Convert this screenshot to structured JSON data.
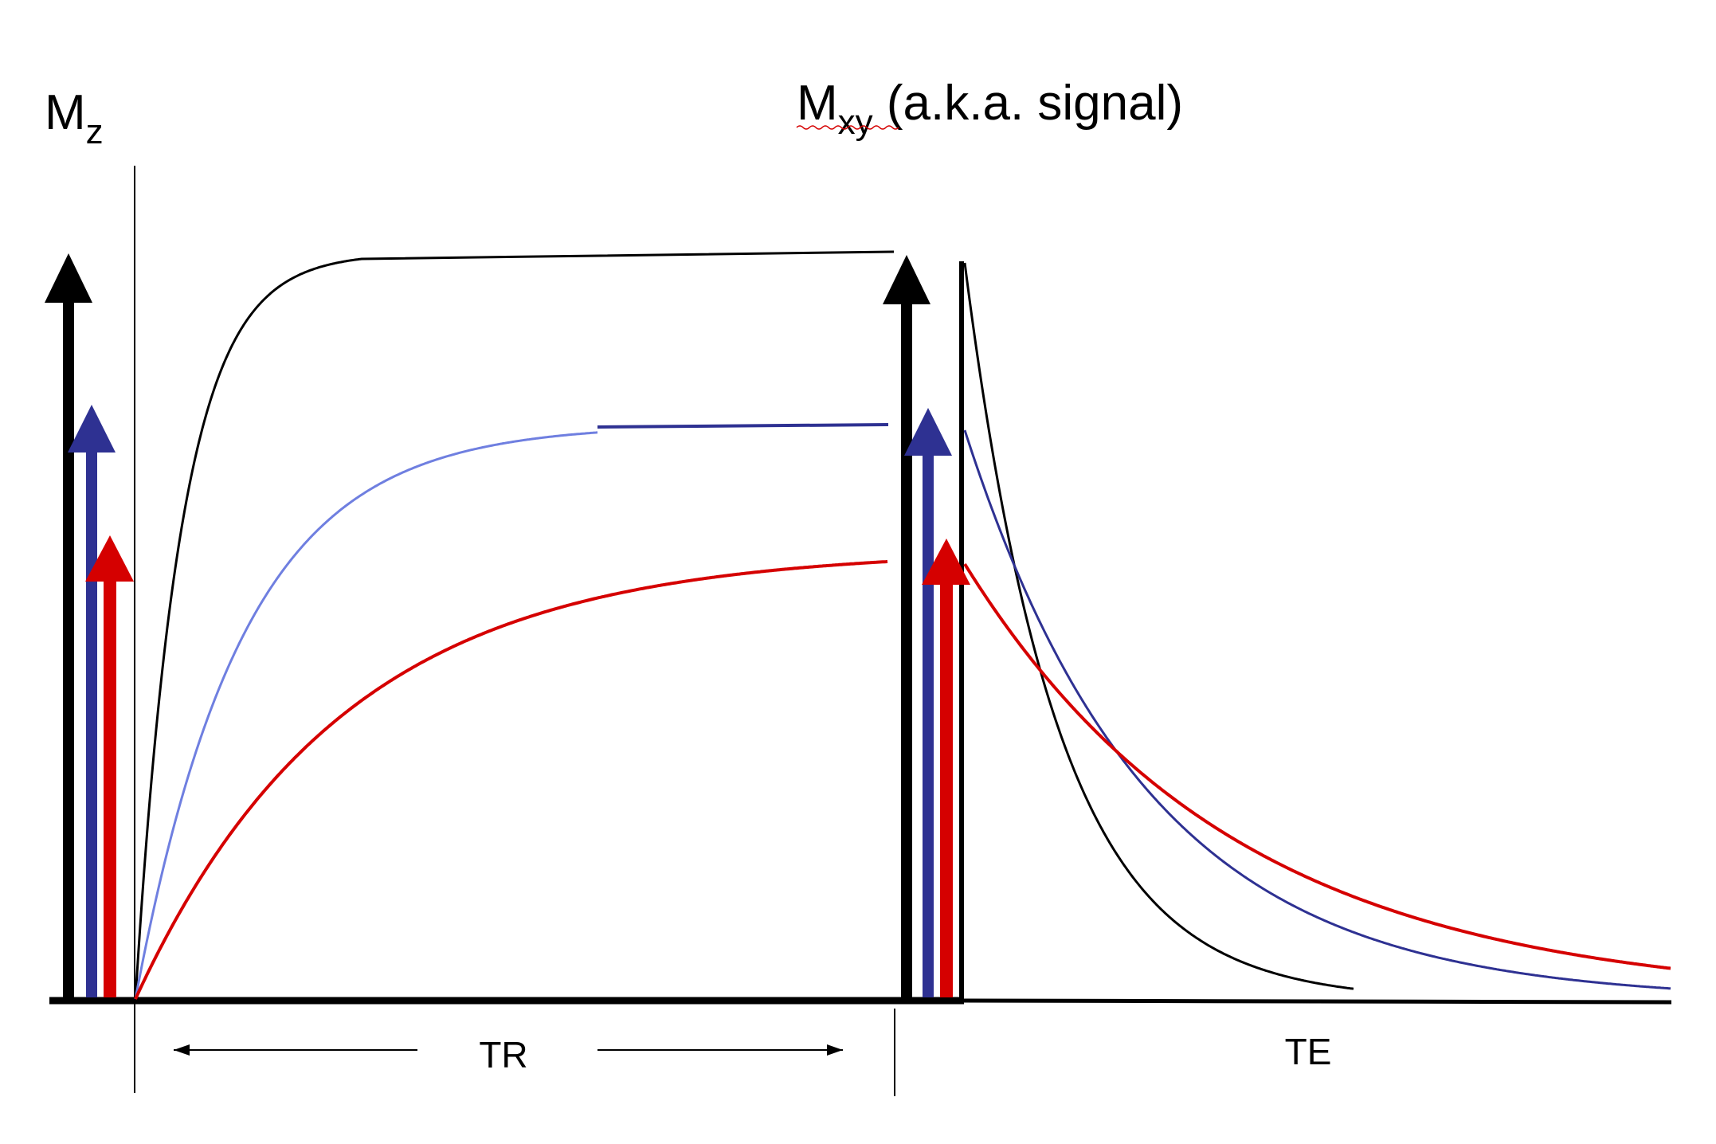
{
  "diagram": {
    "left_title": {
      "main": "M",
      "sub": "z"
    },
    "right_title": {
      "main": "M",
      "sub": "xy",
      "rest": " (a.k.a. signal)"
    },
    "tr_label": "TR",
    "te_label": "TE",
    "colors": {
      "black": "#000000",
      "blue": "#2e3192",
      "light_blue": "#6f7fe0",
      "red": "#d50000"
    },
    "curves": {
      "t1_recovery": [
        "black",
        "blue",
        "red"
      ],
      "t2_decay": [
        "black",
        "blue",
        "red"
      ]
    }
  }
}
